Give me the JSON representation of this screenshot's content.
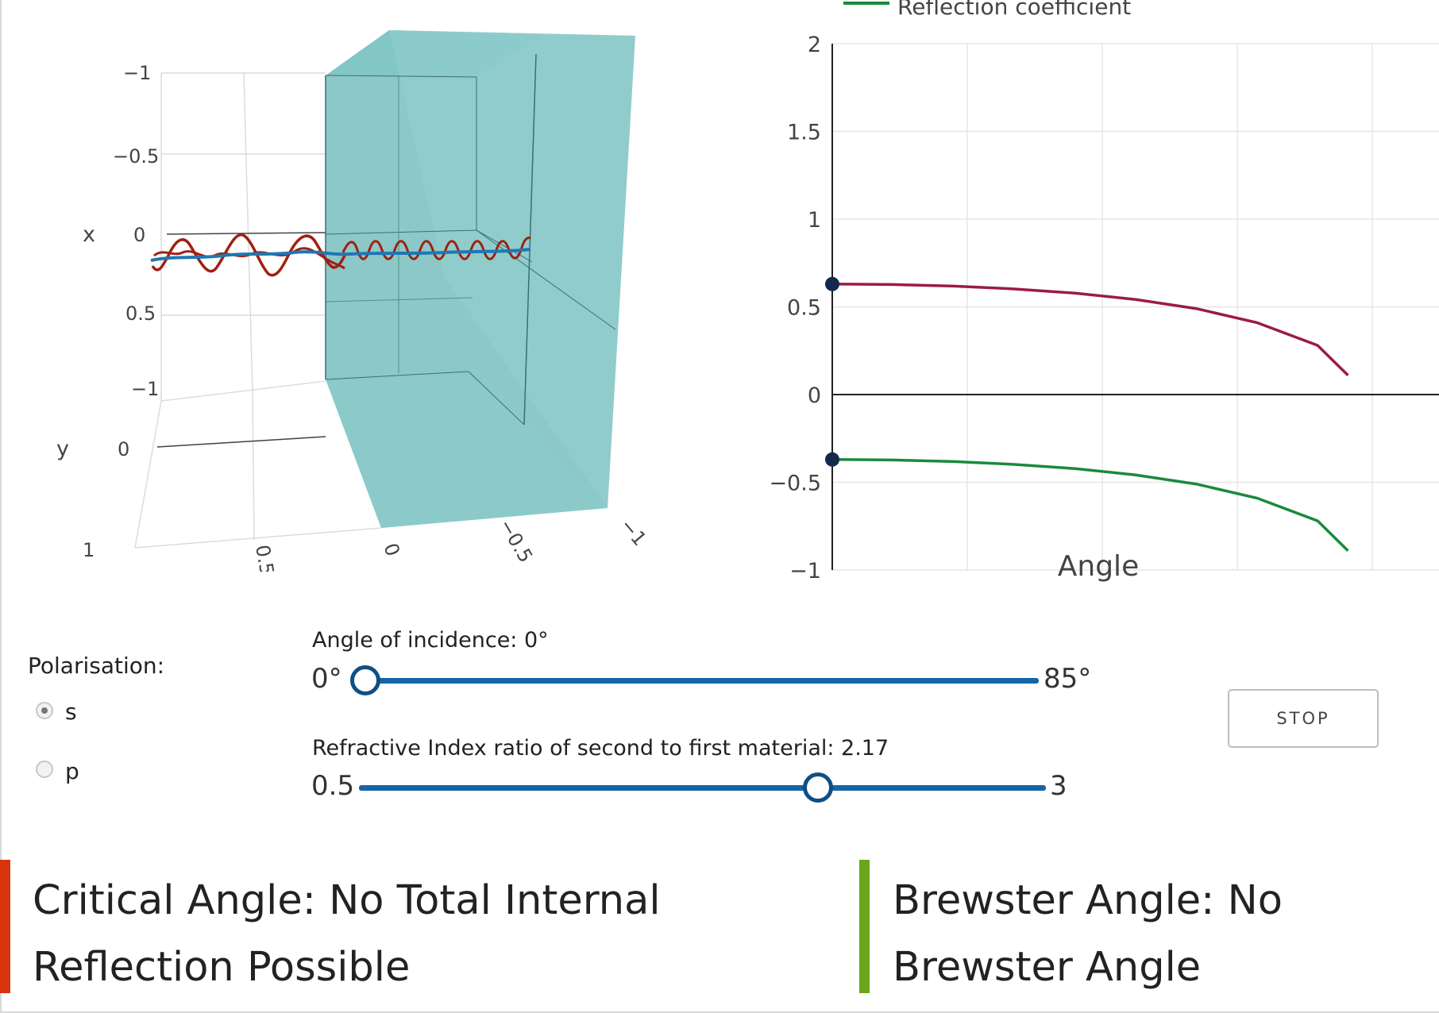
{
  "plot3d": {
    "x_axis": {
      "title": "x",
      "ticks": [
        "−1",
        "−0.5",
        "0",
        "0.5",
        "−1"
      ]
    },
    "y_axis": {
      "title": "y",
      "ticks": [
        "1",
        "0"
      ]
    },
    "z_axis": {
      "ticks": [
        "0.5",
        "0",
        "−0.5",
        "−1"
      ]
    },
    "colors": {
      "slab": "#5fb3b3",
      "wave_red": "#a02010",
      "wave_blue": "#1f77b4"
    }
  },
  "chart_data": {
    "type": "line",
    "title": "",
    "xlabel": "Angle",
    "ylabel": "",
    "ylim": [
      -1,
      2
    ],
    "x": [
      0,
      10,
      20,
      30,
      40,
      50,
      60,
      70,
      80,
      85
    ],
    "series": [
      {
        "name": "",
        "color": "#9b1a4c",
        "values": [
          0.63,
          0.627,
          0.618,
          0.602,
          0.578,
          0.542,
          0.49,
          0.41,
          0.28,
          0.11
        ]
      },
      {
        "name": "Reflection coefficient",
        "color": "#1a8a3c",
        "values": [
          -0.37,
          -0.373,
          -0.382,
          -0.398,
          -0.422,
          -0.458,
          -0.51,
          -0.59,
          -0.72,
          -0.89
        ]
      }
    ],
    "markers": [
      {
        "x": 0,
        "y": 0.63
      },
      {
        "x": 0,
        "y": -0.37
      }
    ],
    "yticks": [
      "2",
      "1.5",
      "1",
      "0.5",
      "0",
      "−0.5",
      "−1"
    ],
    "grid": true,
    "legend_position": "top"
  },
  "controls": {
    "polarisation_label": "Polarisation:",
    "options": [
      "s",
      "p"
    ],
    "selected": "s",
    "angle": {
      "label": "Angle of incidence: 0°",
      "min_label": "0°",
      "max_label": "85°",
      "value": 0,
      "min": 0,
      "max": 85
    },
    "refr": {
      "label": "Refractive Index ratio of second to first material: 2.17",
      "min_label": "0.5",
      "max_label": "3",
      "value": 2.17,
      "min": 0.5,
      "max": 3
    },
    "stop_label": "STOP"
  },
  "callouts": {
    "critical": {
      "text": "Critical Angle: No Total Internal Reflection Possible",
      "color": "#d8350f"
    },
    "brewster": {
      "text": "Brewster Angle: No Brewster Angle",
      "color": "#6aa51b"
    }
  }
}
